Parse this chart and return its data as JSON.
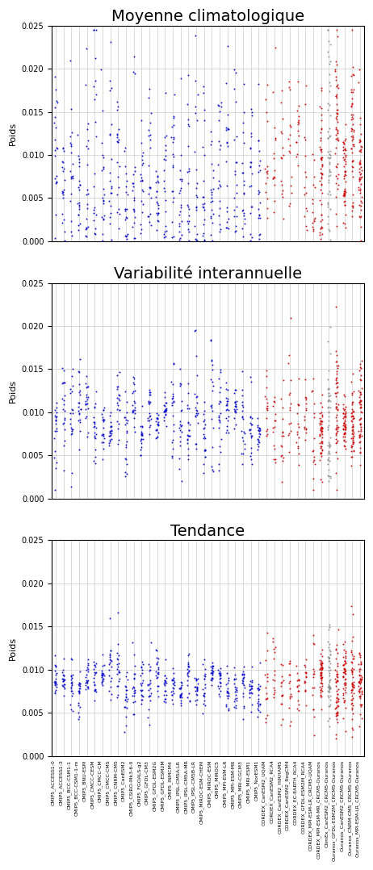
{
  "titles": [
    "Moyenne climatologique",
    "Variabilité interannuelle",
    "Tendance"
  ],
  "ylabel": "Poids",
  "ylim": [
    0,
    0.025
  ],
  "yticks": [
    0.0,
    0.005,
    0.01,
    0.015,
    0.02,
    0.025
  ],
  "background_color": "#ffffff",
  "categories": [
    "CMIP5_ACCESS1-0",
    "CMIP5_ACCESS1-3",
    "CMIP5_BCC-CSM1-1",
    "CMIP5_BCC-CSM1-1-m",
    "CMIP5_BNU-ESM",
    "CMIP5_CMCC-CESM",
    "CMIP5_CMCC-CM",
    "CMIP5_CMCC-CMS",
    "CMIP5_CNRM-CM5",
    "CMIP5_CanESM2",
    "CMIP5_CSIRO-Mk3-6-0",
    "CMIP5_FGOALS-g2",
    "CMIP5_GFDL-CM3",
    "CMIP5_GFDL-ESM2G",
    "CMIP5_GFDL-ESM2M",
    "CMIP5_INMCM4",
    "CMIP5_IPSL-CM5A-LR",
    "CMIP5_IPSL-CM5A-MR",
    "CMIP5_IPSL-CM5B-LR",
    "CMIP5_MIROC-ESM-CHEM",
    "CMIP5_MIROC-ESM",
    "CMIP5_MIROC5",
    "CMIP5_MPI-ESM-LR",
    "CMIP5_MPI-ESM-MR",
    "CMIP5_MRI-CGCM3",
    "CMIP5_MRI-ESM1",
    "CMIP5_NorESM1",
    "CORDEX_CanESM2_UQAM",
    "CORDEX_CanESM2_RCA4",
    "CORDEX_CanESM2_HiRHAMS",
    "CORDEX_CanESM2_RegCM4",
    "CORDEX_EC-EARTH_RCA4",
    "CORDEX_GFDL-ESM2M_RCA4",
    "CORDEX_MPI-ESM-LR_CRCM5-UQAM",
    "CORDEX_MPI-ESM-MR_CRCM5-Ouranos",
    "ClimEx_CanESM2_CRCM5-Ouranos",
    "Ouranos_GFDL-ESM2M_CRCM5-Ouranos",
    "Ouranos_CanESM2_CRCM5-Ouranos",
    "Ouranos_CNRM-CM5_CRCM5-Ouranos",
    "Ouranos_MPI-ESM-LR_CRCM5-Ouranos"
  ],
  "blue_color": "#0000cc",
  "red_color": "#cc0000",
  "gray_color": "#888888",
  "dot_size": 2,
  "figsize": [
    4.62,
    10.78
  ],
  "dpi": 100,
  "title_fontsize": 14,
  "ylabel_fontsize": 8,
  "ytick_fontsize": 7,
  "xtick_fontsize": 4.5,
  "grid_color": "#cccccc",
  "seed": 12345
}
